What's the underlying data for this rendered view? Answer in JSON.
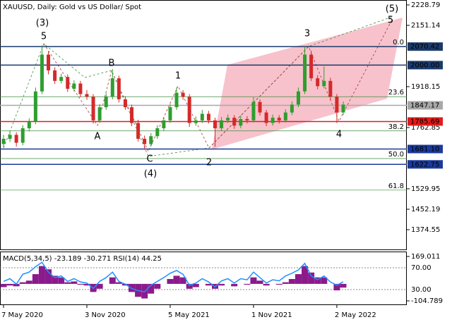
{
  "chart_data": [
    {
      "type": "candlestick",
      "title": "XAUUSD, Daily:  Gold vs US Dollar/ Spot",
      "categories": [
        "7 May 2020",
        null,
        null,
        null,
        null,
        null,
        null,
        null,
        null,
        null,
        null,
        null,
        null,
        "3 Nov 2020",
        null,
        null,
        null,
        null,
        null,
        null,
        null,
        null,
        null,
        null,
        null,
        null,
        "5 May 2021",
        null,
        null,
        null,
        null,
        null,
        null,
        null,
        null,
        null,
        null,
        null,
        null,
        "1 Nov 2021",
        null,
        null,
        null,
        null,
        null,
        null,
        null,
        null,
        null,
        null,
        null,
        null,
        "2 May 2022",
        null
      ],
      "open": [
        1700,
        1720,
        1735,
        1705,
        1760,
        1785,
        1900,
        2040,
        1980,
        1940,
        1955,
        1910,
        1930,
        1890,
        1880,
        1790,
        1840,
        1880,
        1950,
        1870,
        1840,
        1780,
        1720,
        1700,
        1730,
        1760,
        1790,
        1840,
        1895,
        1880,
        1780,
        1790,
        1815,
        1790,
        1760,
        1790,
        1800,
        1770,
        1795,
        1790,
        1860,
        1820,
        1780,
        1800,
        1790,
        1820,
        1850,
        1900,
        2040,
        1950,
        1920,
        1940,
        1880,
        1820
      ],
      "high": [
        1735,
        1748,
        1745,
        1772,
        1798,
        1915,
        2075,
        2052,
        1992,
        1968,
        1965,
        1942,
        1940,
        1905,
        1890,
        1852,
        1893,
        1985,
        1960,
        1882,
        1850,
        1792,
        1732,
        1742,
        1772,
        1803,
        1852,
        1915,
        1905,
        1890,
        1805,
        1830,
        1826,
        1800,
        1803,
        1812,
        1810,
        1808,
        1806,
        1878,
        1870,
        1830,
        1812,
        1810,
        1832,
        1862,
        1915,
        2070,
        2055,
        1962,
        1995,
        1952,
        1890,
        1862
      ],
      "low": [
        1688,
        1708,
        1690,
        1695,
        1748,
        1775,
        1890,
        1965,
        1928,
        1930,
        1898,
        1900,
        1878,
        1868,
        1778,
        1780,
        1830,
        1870,
        1858,
        1830,
        1768,
        1710,
        1678,
        1690,
        1720,
        1750,
        1780,
        1830,
        1868,
        1765,
        1770,
        1780,
        1778,
        1690,
        1750,
        1780,
        1758,
        1760,
        1778,
        1782,
        1808,
        1768,
        1770,
        1778,
        1782,
        1810,
        1840,
        1890,
        1940,
        1908,
        1912,
        1868,
        1780,
        1810
      ],
      "close": [
        1720,
        1735,
        1705,
        1760,
        1785,
        1900,
        2040,
        1980,
        1940,
        1955,
        1910,
        1930,
        1890,
        1880,
        1790,
        1840,
        1880,
        1950,
        1870,
        1840,
        1780,
        1720,
        1700,
        1730,
        1760,
        1790,
        1840,
        1895,
        1880,
        1780,
        1790,
        1815,
        1790,
        1760,
        1790,
        1800,
        1770,
        1795,
        1790,
        1860,
        1820,
        1780,
        1800,
        1790,
        1820,
        1850,
        1900,
        2040,
        1950,
        1920,
        1940,
        1880,
        1820,
        1850
      ],
      "up_color": "#2f9e2f",
      "down_color": "#d42a2a",
      "ylim": [
        1296.8,
        2247.5
      ],
      "yticks": [
        2228.79,
        2151.14,
        1918.15,
        1762.85,
        1529.95,
        1452.19,
        1374.55
      ],
      "levels": [
        {
          "value": 2070.42,
          "label": "2070.42",
          "color": "#1b3a6b"
        },
        {
          "value": 2000,
          "label": "2000.00",
          "color": "#1b3a6b"
        },
        {
          "value": 1847.17,
          "label": "1847.17",
          "color": "#a8a8a8"
        },
        {
          "value": 1785.69,
          "label": "1785.69",
          "color": "#e01c1c"
        },
        {
          "value": 1681.1,
          "label": "1681.10",
          "color": "#1b3a9b"
        },
        {
          "value": 1622.75,
          "label": "1622.75",
          "color": "#1b3a9b"
        }
      ],
      "fib": [
        {
          "value": 2070.42,
          "label": "0.0"
        },
        {
          "value": 1880,
          "label": "23.6"
        },
        {
          "value": 1750,
          "label": "38.2"
        },
        {
          "value": 1645,
          "label": "50.0"
        },
        {
          "value": 1525,
          "label": "61.8"
        }
      ],
      "fib_color": "#3c8c3c",
      "wave_labels": [
        {
          "text": "(3)",
          "color": "#3c8c3c"
        },
        {
          "text": "5",
          "color": "#a83232"
        },
        {
          "text": "B",
          "color": "#a83232"
        },
        {
          "text": "A",
          "color": "#a83232"
        },
        {
          "text": "C",
          "color": "#a83232"
        },
        {
          "text": "(4)",
          "color": "#3c8c3c"
        },
        {
          "text": "1",
          "color": "#a83232"
        },
        {
          "text": "2",
          "color": "#a83232"
        },
        {
          "text": "3",
          "color": "#a83232"
        },
        {
          "text": "4",
          "color": "#a83232"
        },
        {
          "text": "5",
          "color": "#a83232"
        },
        {
          "text": "(5)",
          "color": "#3c8c3c"
        }
      ]
    },
    {
      "type": "indicator",
      "macd_label": "MACD(5,34,5)",
      "macd_main": -23.189,
      "macd_signal": -30.271,
      "rsi_label": "RSI(14)",
      "rsi_value": 44.25,
      "series": [
        {
          "color": "#8b1a8b",
          "values": [
            -20,
            -10,
            -15,
            10,
            20,
            60,
            110,
            90,
            50,
            40,
            10,
            15,
            -5,
            -10,
            -50,
            -30,
            0,
            40,
            10,
            -10,
            -50,
            -80,
            -90,
            -60,
            -30,
            0,
            30,
            50,
            40,
            -30,
            -20,
            0,
            -10,
            -30,
            -10,
            0,
            -15,
            0,
            -5,
            40,
            20,
            -10,
            0,
            -5,
            10,
            30,
            60,
            110,
            70,
            40,
            40,
            0,
            -40,
            -23
          ]
        },
        {
          "color": "#1e90ff",
          "axis": "y2",
          "values": [
            45,
            50,
            40,
            58,
            62,
            72,
            80,
            62,
            52,
            55,
            45,
            50,
            44,
            42,
            32,
            45,
            52,
            62,
            45,
            40,
            32,
            28,
            26,
            38,
            45,
            52,
            60,
            65,
            58,
            38,
            42,
            50,
            44,
            35,
            46,
            50,
            42,
            50,
            48,
            62,
            52,
            42,
            48,
            46,
            55,
            60,
            66,
            78,
            55,
            48,
            55,
            44,
            38,
            44.25
          ]
        }
      ],
      "ylim": [
        -126.5,
        195.1
      ],
      "yticks": [
        169.011,
        -104.789
      ],
      "y2lim": [
        2.9,
        98.4
      ],
      "y2ticks": [
        {
          "value": 70,
          "label": "70.00"
        },
        {
          "value": 30,
          "label": "30.00"
        }
      ]
    }
  ]
}
